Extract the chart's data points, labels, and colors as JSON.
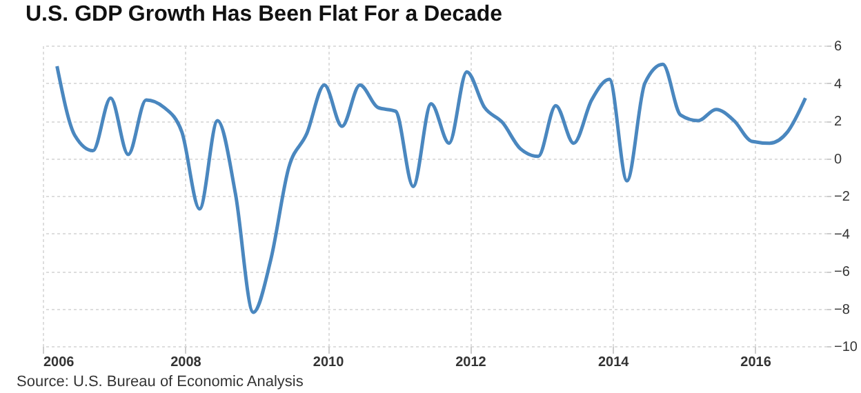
{
  "chart_data": {
    "type": "line",
    "title": "U.S. GDP Growth Has Been Flat For a Decade",
    "annotations": [
      "Source: U.S. Bureau of Economic Analysis"
    ],
    "x": [
      "2006-03",
      "2006-06",
      "2006-09",
      "2006-12",
      "2007-03",
      "2007-06",
      "2007-09",
      "2007-12",
      "2008-03",
      "2008-06",
      "2008-09",
      "2008-12",
      "2009-03",
      "2009-06",
      "2009-09",
      "2009-12",
      "2010-03",
      "2010-06",
      "2010-09",
      "2010-12",
      "2011-03",
      "2011-06",
      "2011-09",
      "2011-12",
      "2012-03",
      "2012-06",
      "2012-09",
      "2012-12",
      "2013-03",
      "2013-06",
      "2013-09",
      "2013-12",
      "2014-03",
      "2014-06",
      "2014-09",
      "2014-12",
      "2015-03",
      "2015-06",
      "2015-09",
      "2015-12",
      "2016-03",
      "2016-06",
      "2016-09"
    ],
    "series": [
      {
        "color": "#4a87bf",
        "values": [
          4.9,
          1.2,
          0.4,
          3.2,
          0.2,
          3.1,
          2.7,
          1.4,
          -2.7,
          2.0,
          -1.9,
          -8.2,
          -5.4,
          -0.5,
          1.3,
          3.9,
          1.7,
          3.9,
          2.7,
          2.5,
          -1.5,
          2.9,
          0.8,
          4.6,
          2.7,
          1.9,
          0.5,
          0.1,
          2.8,
          0.8,
          3.1,
          4.2,
          -1.2,
          4.0,
          5.0,
          2.3,
          2.0,
          2.6,
          2.0,
          0.9,
          0.8,
          1.4,
          3.2
        ]
      }
    ],
    "xlim": [
      "2006",
      "2017"
    ],
    "xticks": [
      "2006",
      "2008",
      "2010",
      "2012",
      "2014",
      "2016"
    ],
    "ylim": [
      -10,
      6
    ],
    "yticks": [
      -10,
      -8,
      -6,
      -4,
      -2,
      0,
      2,
      4,
      6
    ],
    "grid": true,
    "marker": "none",
    "line_style": "solid"
  }
}
